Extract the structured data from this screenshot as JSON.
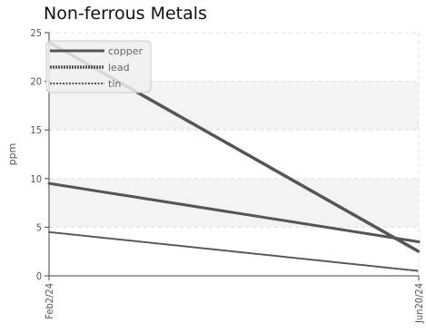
{
  "chart_data": {
    "type": "line",
    "title": "Non-ferrous Metals",
    "xlabel": "",
    "ylabel": "ppm",
    "x": [
      "Feb2/24",
      "Jun20/24"
    ],
    "ylim": [
      0,
      25
    ],
    "yticks": [
      0,
      5,
      10,
      15,
      20,
      25
    ],
    "grid": true,
    "legend_position": "top-left",
    "series": [
      {
        "name": "copper",
        "values": [
          9.5,
          3.5
        ],
        "color": "#555555",
        "style": "solid"
      },
      {
        "name": "lead",
        "values": [
          24,
          2.5
        ],
        "color": "#555555",
        "style": "dashed"
      },
      {
        "name": "tin",
        "values": [
          4.5,
          0.5
        ],
        "color": "#555555",
        "style": "dotted"
      }
    ]
  }
}
